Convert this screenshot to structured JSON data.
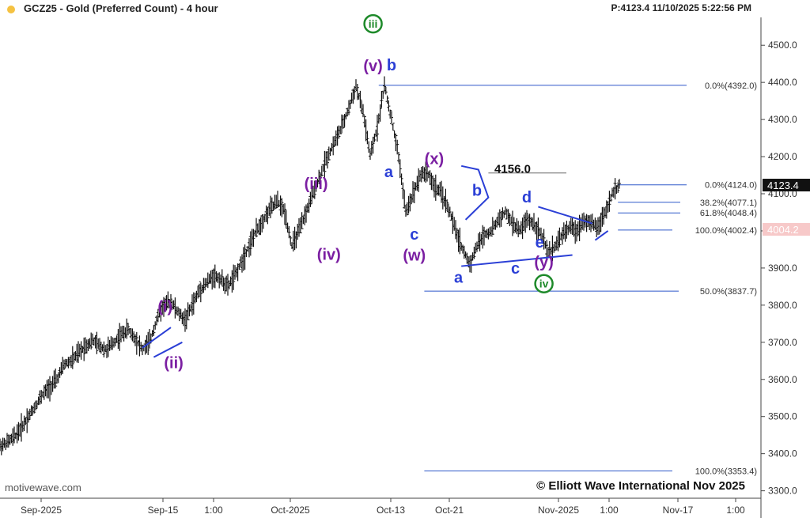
{
  "header": {
    "title": "GCZ25 - Gold (Preferred Count) - 4 hour",
    "price_readout": "P:4123.4  11/10/2025 5:22:56 PM"
  },
  "footer": {
    "watermark": "motivewave.com",
    "copyright": "© Elliott Wave International Nov 2025"
  },
  "colors": {
    "accent_blue": "#2b3fd6",
    "wave_purple": "#7b1fa2",
    "wave_green": "#1e8a2a",
    "level_line": "#2f58c9",
    "current_price_bg": "#111111",
    "prior_price_bg": "#f7c9c9",
    "status_dot": "#f5c242"
  },
  "chart_data": {
    "type": "candlestick",
    "title": "GCZ25 - Gold (Preferred Count) - 4 hour",
    "ylim": [
      3280,
      4575
    ],
    "y_ticks": [
      3300,
      3400,
      3500,
      3600,
      3700,
      3800,
      3900,
      4000,
      4100,
      4200,
      4300,
      4400,
      4500
    ],
    "y_tick_labels": [
      "3300.0",
      "3400.0",
      "3500.0",
      "3600.0",
      "3700.0",
      "3800.0",
      "3900.0",
      "4000.0",
      "4100.0",
      "4200.0",
      "4300.0",
      "4400.0",
      "4500.0"
    ],
    "x_ticks": [
      "Sep-2025",
      "Sep-15",
      "1:00",
      "Oct-2025",
      "Oct-13",
      "Oct-21",
      "Nov-2025",
      "1:00",
      "Nov-17",
      "1:00"
    ],
    "price_path": [
      [
        0,
        3420
      ],
      [
        5,
        3430
      ],
      [
        10,
        3445
      ],
      [
        15,
        3470
      ],
      [
        20,
        3500
      ],
      [
        25,
        3530
      ],
      [
        30,
        3560
      ],
      [
        35,
        3580
      ],
      [
        40,
        3600
      ],
      [
        45,
        3640
      ],
      [
        50,
        3650
      ],
      [
        55,
        3670
      ],
      [
        60,
        3690
      ],
      [
        65,
        3705
      ],
      [
        70,
        3690
      ],
      [
        75,
        3680
      ],
      [
        80,
        3700
      ],
      [
        85,
        3720
      ],
      [
        90,
        3735
      ],
      [
        95,
        3710
      ],
      [
        100,
        3680
      ],
      [
        105,
        3700
      ],
      [
        110,
        3760
      ],
      [
        115,
        3800
      ],
      [
        120,
        3810
      ],
      [
        125,
        3780
      ],
      [
        130,
        3760
      ],
      [
        135,
        3800
      ],
      [
        140,
        3840
      ],
      [
        145,
        3860
      ],
      [
        150,
        3880
      ],
      [
        155,
        3870
      ],
      [
        160,
        3850
      ],
      [
        165,
        3880
      ],
      [
        170,
        3920
      ],
      [
        175,
        3960
      ],
      [
        180,
        4000
      ],
      [
        185,
        4030
      ],
      [
        190,
        4060
      ],
      [
        195,
        4080
      ],
      [
        200,
        4050
      ],
      [
        205,
        3960
      ],
      [
        210,
        4000
      ],
      [
        215,
        4050
      ],
      [
        220,
        4100
      ],
      [
        225,
        4150
      ],
      [
        230,
        4200
      ],
      [
        235,
        4240
      ],
      [
        240,
        4280
      ],
      [
        245,
        4330
      ],
      [
        250,
        4390
      ],
      [
        255,
        4320
      ],
      [
        260,
        4200
      ],
      [
        265,
        4280
      ],
      [
        270,
        4392
      ],
      [
        275,
        4300
      ],
      [
        280,
        4200
      ],
      [
        285,
        4050
      ],
      [
        290,
        4100
      ],
      [
        295,
        4150
      ],
      [
        300,
        4160
      ],
      [
        305,
        4120
      ],
      [
        310,
        4100
      ],
      [
        315,
        4060
      ],
      [
        320,
        4000
      ],
      [
        325,
        3950
      ],
      [
        330,
        3910
      ],
      [
        335,
        3960
      ],
      [
        340,
        3990
      ],
      [
        345,
        4000
      ],
      [
        350,
        4030
      ],
      [
        355,
        4050
      ],
      [
        360,
        4020
      ],
      [
        365,
        4000
      ],
      [
        370,
        4030
      ],
      [
        375,
        4020
      ],
      [
        380,
        3990
      ],
      [
        385,
        3940
      ],
      [
        390,
        3960
      ],
      [
        395,
        3990
      ],
      [
        400,
        4010
      ],
      [
        405,
        4000
      ],
      [
        410,
        4030
      ],
      [
        415,
        4020
      ],
      [
        420,
        4010
      ],
      [
        425,
        4050
      ],
      [
        430,
        4100
      ],
      [
        435,
        4124
      ]
    ],
    "horizontal_levels": [
      {
        "label": "0.0%(4392.0)",
        "value": 4392.0
      },
      {
        "label": "0.0%(4124.0)",
        "value": 4124.0
      },
      {
        "label": "38.2%(4077.1)",
        "value": 4077.1
      },
      {
        "label": "61.8%(4048.4)",
        "value": 4048.4
      },
      {
        "label": "100.0%(4002.4)",
        "value": 4002.4
      },
      {
        "label": "50.0%(3837.7)",
        "value": 3837.7
      },
      {
        "label": "100.0%(3353.4)",
        "value": 3353.4
      }
    ],
    "reference_level": {
      "label": "4156.0",
      "value": 4156.0
    },
    "current_price": {
      "label": "4123.4",
      "value": 4123.4
    },
    "prior_price": {
      "label": "4004.2",
      "value": 4004.2
    },
    "wave_labels": [
      {
        "text": "iii",
        "style": "green-circle",
        "bar": 262,
        "price": 4545
      },
      {
        "text": "(v)",
        "style": "purple",
        "bar": 262,
        "price": 4430
      },
      {
        "text": "b",
        "style": "blue",
        "bar": 275,
        "price": 4432
      },
      {
        "text": "a",
        "style": "blue",
        "bar": 273,
        "price": 4145
      },
      {
        "text": "(x)",
        "style": "purple",
        "bar": 305,
        "price": 4180
      },
      {
        "text": "4156.0",
        "style": "black",
        "bar": 360,
        "price": 4156
      },
      {
        "text": "b",
        "style": "blue",
        "bar": 335,
        "price": 4095
      },
      {
        "text": "d",
        "style": "blue",
        "bar": 370,
        "price": 4077
      },
      {
        "text": "c",
        "style": "blue",
        "bar": 291,
        "price": 3977
      },
      {
        "text": "e",
        "style": "blue",
        "bar": 379,
        "price": 3955
      },
      {
        "text": "(iii)",
        "style": "purple",
        "bar": 222,
        "price": 4113
      },
      {
        "text": "(iv)",
        "style": "purple",
        "bar": 231,
        "price": 3922
      },
      {
        "text": "(w)",
        "style": "purple",
        "bar": 291,
        "price": 3920
      },
      {
        "text": "(y)",
        "style": "purple",
        "bar": 382,
        "price": 3902
      },
      {
        "text": "a",
        "style": "blue",
        "bar": 322,
        "price": 3860
      },
      {
        "text": "c",
        "style": "blue",
        "bar": 362,
        "price": 3885
      },
      {
        "text": "iv",
        "style": "green-circle",
        "bar": 382,
        "price": 3845
      },
      {
        "text": "(i)",
        "style": "purple",
        "bar": 116,
        "price": 3782
      },
      {
        "text": "(ii)",
        "style": "purple",
        "bar": 122,
        "price": 3630
      }
    ]
  }
}
